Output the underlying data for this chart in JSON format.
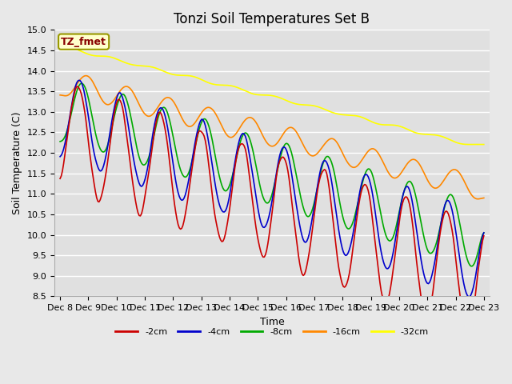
{
  "title": "Tonzi Soil Temperatures Set B",
  "xlabel": "Time",
  "ylabel": "Soil Temperature (C)",
  "ylim": [
    8.5,
    15.0
  ],
  "yticks": [
    8.5,
    9.0,
    9.5,
    10.0,
    10.5,
    11.0,
    11.5,
    12.0,
    12.5,
    13.0,
    13.5,
    14.0,
    14.5,
    15.0
  ],
  "xtick_labels": [
    "Dec 8",
    "Dec 9",
    "Dec 10",
    "Dec 11",
    "Dec 12",
    "Dec 13",
    "Dec 14",
    "Dec 15",
    "Dec 16",
    "Dec 17",
    "Dec 18",
    "Dec 19",
    "Dec 20",
    "Dec 21",
    "Dec 22",
    "Dec 23"
  ],
  "series_colors": [
    "#cc0000",
    "#0000cc",
    "#00aa00",
    "#ff8800",
    "#ffff00"
  ],
  "series_labels": [
    "-2cm",
    "-4cm",
    "-8cm",
    "-16cm",
    "-32cm"
  ],
  "legend_label": "TZ_fmet",
  "legend_box_color": "#ffffcc",
  "legend_box_edge": "#999900",
  "legend_text_color": "#880000",
  "fig_bg_color": "#e8e8e8",
  "plot_bg_color": "#e0e0e0",
  "grid_color": "#ffffff",
  "line_width": 1.2,
  "title_fontsize": 12,
  "axis_fontsize": 9,
  "tick_fontsize": 8
}
